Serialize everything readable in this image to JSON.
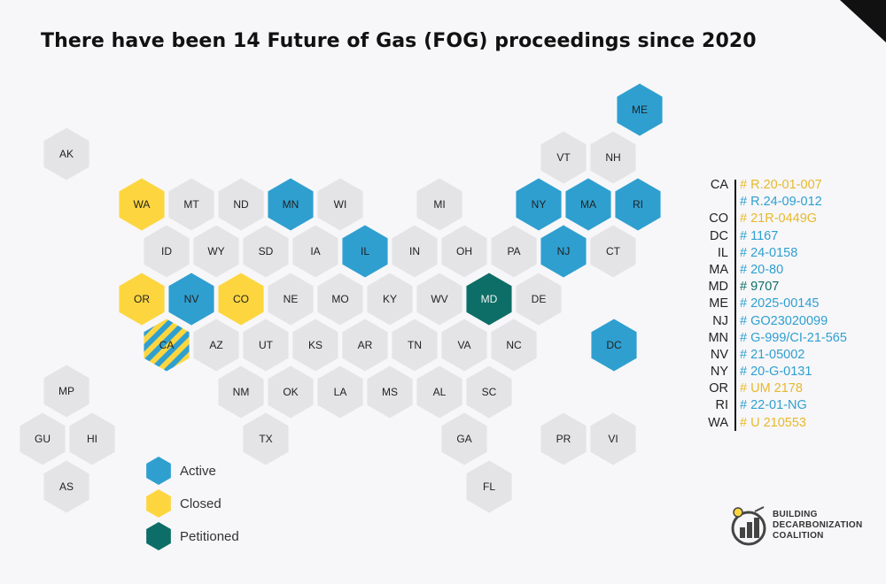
{
  "title": "There have been 14 Future of Gas (FOG) proceedings since 2020",
  "colors": {
    "active": "#2f9fd0",
    "closed": "#fdd63f",
    "petitioned": "#0d6e67",
    "none": "#e4e4e6",
    "closed_text": "#e7b92b",
    "active_text": "#2f9fd0",
    "petitioned_text": "#0d6e67"
  },
  "map": {
    "states": [
      {
        "abbr": "ME",
        "status": "active"
      },
      {
        "abbr": "AK",
        "status": "none"
      },
      {
        "abbr": "VT",
        "status": "none"
      },
      {
        "abbr": "NH",
        "status": "none"
      },
      {
        "abbr": "WA",
        "status": "closed"
      },
      {
        "abbr": "MT",
        "status": "none"
      },
      {
        "abbr": "ND",
        "status": "none"
      },
      {
        "abbr": "MN",
        "status": "active"
      },
      {
        "abbr": "WI",
        "status": "none"
      },
      {
        "abbr": "MI",
        "status": "none"
      },
      {
        "abbr": "NY",
        "status": "active"
      },
      {
        "abbr": "MA",
        "status": "active"
      },
      {
        "abbr": "RI",
        "status": "active"
      },
      {
        "abbr": "ID",
        "status": "none"
      },
      {
        "abbr": "WY",
        "status": "none"
      },
      {
        "abbr": "SD",
        "status": "none"
      },
      {
        "abbr": "IA",
        "status": "none"
      },
      {
        "abbr": "IL",
        "status": "active"
      },
      {
        "abbr": "IN",
        "status": "none"
      },
      {
        "abbr": "OH",
        "status": "none"
      },
      {
        "abbr": "PA",
        "status": "none"
      },
      {
        "abbr": "NJ",
        "status": "active"
      },
      {
        "abbr": "CT",
        "status": "none"
      },
      {
        "abbr": "OR",
        "status": "closed"
      },
      {
        "abbr": "NV",
        "status": "active"
      },
      {
        "abbr": "CO",
        "status": "closed"
      },
      {
        "abbr": "NE",
        "status": "none"
      },
      {
        "abbr": "MO",
        "status": "none"
      },
      {
        "abbr": "KY",
        "status": "none"
      },
      {
        "abbr": "WV",
        "status": "none"
      },
      {
        "abbr": "MD",
        "status": "petitioned"
      },
      {
        "abbr": "DE",
        "status": "none"
      },
      {
        "abbr": "CA",
        "status": "active+closed"
      },
      {
        "abbr": "AZ",
        "status": "none"
      },
      {
        "abbr": "UT",
        "status": "none"
      },
      {
        "abbr": "KS",
        "status": "none"
      },
      {
        "abbr": "AR",
        "status": "none"
      },
      {
        "abbr": "TN",
        "status": "none"
      },
      {
        "abbr": "VA",
        "status": "none"
      },
      {
        "abbr": "NC",
        "status": "none"
      },
      {
        "abbr": "DC",
        "status": "active"
      },
      {
        "abbr": "MP",
        "status": "none"
      },
      {
        "abbr": "NM",
        "status": "none"
      },
      {
        "abbr": "OK",
        "status": "none"
      },
      {
        "abbr": "LA",
        "status": "none"
      },
      {
        "abbr": "MS",
        "status": "none"
      },
      {
        "abbr": "AL",
        "status": "none"
      },
      {
        "abbr": "SC",
        "status": "none"
      },
      {
        "abbr": "GU",
        "status": "none"
      },
      {
        "abbr": "HI",
        "status": "none"
      },
      {
        "abbr": "TX",
        "status": "none"
      },
      {
        "abbr": "GA",
        "status": "none"
      },
      {
        "abbr": "PR",
        "status": "none"
      },
      {
        "abbr": "VI",
        "status": "none"
      },
      {
        "abbr": "AS",
        "status": "none"
      },
      {
        "abbr": "FL",
        "status": "none"
      }
    ]
  },
  "legend": [
    {
      "label": "Active",
      "status": "active"
    },
    {
      "label": "Closed",
      "status": "closed"
    },
    {
      "label": "Petitioned",
      "status": "petitioned"
    }
  ],
  "proceedings": [
    {
      "state": "CA",
      "id": "# R.20-01-007",
      "status": "closed"
    },
    {
      "state": "",
      "id": "# R.24-09-012",
      "status": "active"
    },
    {
      "state": "CO",
      "id": "# 21R-0449G",
      "status": "closed"
    },
    {
      "state": "DC",
      "id": "# 1167",
      "status": "active"
    },
    {
      "state": "IL",
      "id": "# 24-0158",
      "status": "active"
    },
    {
      "state": "MA",
      "id": "# 20-80",
      "status": "active"
    },
    {
      "state": "MD",
      "id": "# 9707",
      "status": "petitioned"
    },
    {
      "state": "ME",
      "id": "# 2025-00145",
      "status": "active"
    },
    {
      "state": "NJ",
      "id": "# GO23020099",
      "status": "active"
    },
    {
      "state": "MN",
      "id": "# G-999/CI-21-565",
      "status": "active"
    },
    {
      "state": "NV",
      "id": "# 21-05002",
      "status": "active"
    },
    {
      "state": "NY",
      "id": "# 20-G-0131",
      "status": "active"
    },
    {
      "state": "OR",
      "id": "# UM 2178",
      "status": "closed"
    },
    {
      "state": "RI",
      "id": "# 22-01-NG",
      "status": "active"
    },
    {
      "state": "WA",
      "id": "# U 210553",
      "status": "closed"
    }
  ],
  "logo": {
    "lines": [
      "BUILDING",
      "DECARBONIZATION",
      "COALITION"
    ],
    "icon": "building-decarbonization-logo-icon"
  }
}
